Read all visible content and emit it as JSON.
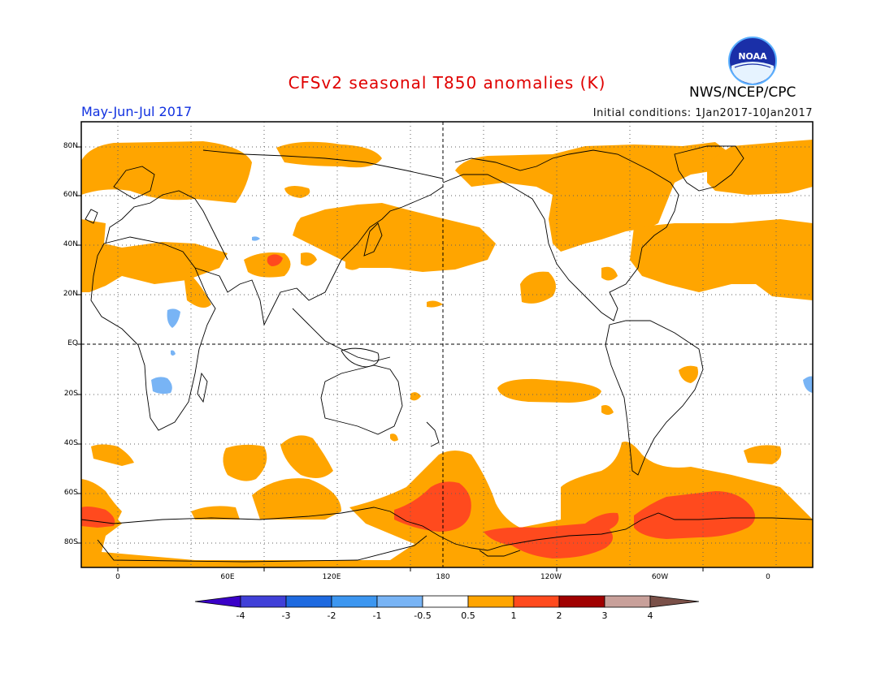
{
  "title": "CFSv2 seasonal T850 anomalies (K)",
  "period": "May-Jun-Jul 2017",
  "initial_conditions": "Initial conditions: 1Jan2017-10Jan2017",
  "agency": "NWS/NCEP/CPC",
  "logo_text": "NOAA",
  "map": {
    "lat_labels": [
      "80N",
      "60N",
      "40N",
      "20N",
      "EQ",
      "20S",
      "40S",
      "60S",
      "80S"
    ],
    "lon_labels": [
      "0",
      "60E",
      "120E",
      "180",
      "120W",
      "60W",
      "0"
    ],
    "lon_range": [
      -20,
      380
    ],
    "lat_range": [
      -90,
      90
    ]
  },
  "colorbar": {
    "labels": [
      "-4",
      "-3",
      "-2",
      "-1",
      "-0.5",
      "0.5",
      "1",
      "2",
      "3",
      "4"
    ],
    "colors": [
      "#3a00c8",
      "#4040d8",
      "#1e6ae0",
      "#3c96f0",
      "#78b4f5",
      "#ffffff",
      "#ffa500",
      "#ff4a1e",
      "#a00000",
      "#c8a09a",
      "#7a5048"
    ]
  },
  "colors": {
    "warm_1": "#ffa500",
    "warm_2": "#ff4a1e",
    "warm_3": "#e02a00",
    "cool_1": "#78b4f5"
  }
}
